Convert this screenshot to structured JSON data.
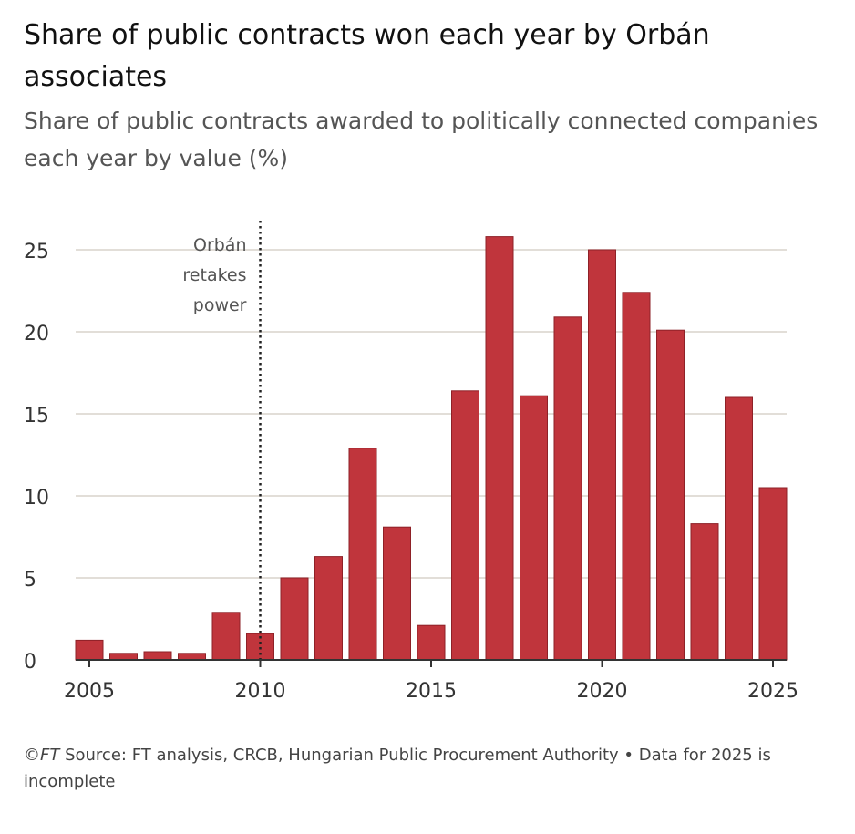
{
  "header": {
    "title": "Share of public contracts won each year by Orbán associates",
    "subtitle": "Share of public contracts awarded to politically connected companies each year by value (%)"
  },
  "footer": {
    "copyright": "©",
    "brand": "FT",
    "source": " Source: FT analysis, CRCB, Hungarian Public Procurement Authority • Data for 2025 is incomplete"
  },
  "colors": {
    "bar": "#c0353c",
    "bar_stroke": "#8e2127",
    "grid": "#d9d3cc",
    "axis": "#333333",
    "annotation_text": "#555555"
  },
  "chart_data": {
    "type": "bar",
    "title": "Share of public contracts won each year by Orbán associates",
    "subtitle": "Share of public contracts awarded to politically connected companies each year by value (%)",
    "xlabel": "",
    "ylabel": "",
    "categories": [
      2005,
      2006,
      2007,
      2008,
      2009,
      2010,
      2011,
      2012,
      2013,
      2014,
      2015,
      2016,
      2017,
      2018,
      2019,
      2020,
      2021,
      2022,
      2023,
      2024,
      2025
    ],
    "values": [
      1.2,
      0.4,
      0.5,
      0.4,
      2.9,
      1.6,
      5.0,
      6.3,
      12.9,
      8.1,
      2.1,
      16.4,
      25.8,
      16.1,
      20.9,
      25.0,
      22.4,
      20.1,
      8.3,
      16.0,
      10.5
    ],
    "xlim": [
      2004.6,
      2025.4
    ],
    "ylim": [
      0,
      27
    ],
    "yticks": [
      0,
      5,
      10,
      15,
      20,
      25
    ],
    "xticks": [
      2005,
      2010,
      2015,
      2020,
      2025
    ],
    "grid": true,
    "annotation": {
      "x": 2010,
      "label_lines": [
        "Orbán",
        "retakes",
        "power"
      ]
    }
  }
}
